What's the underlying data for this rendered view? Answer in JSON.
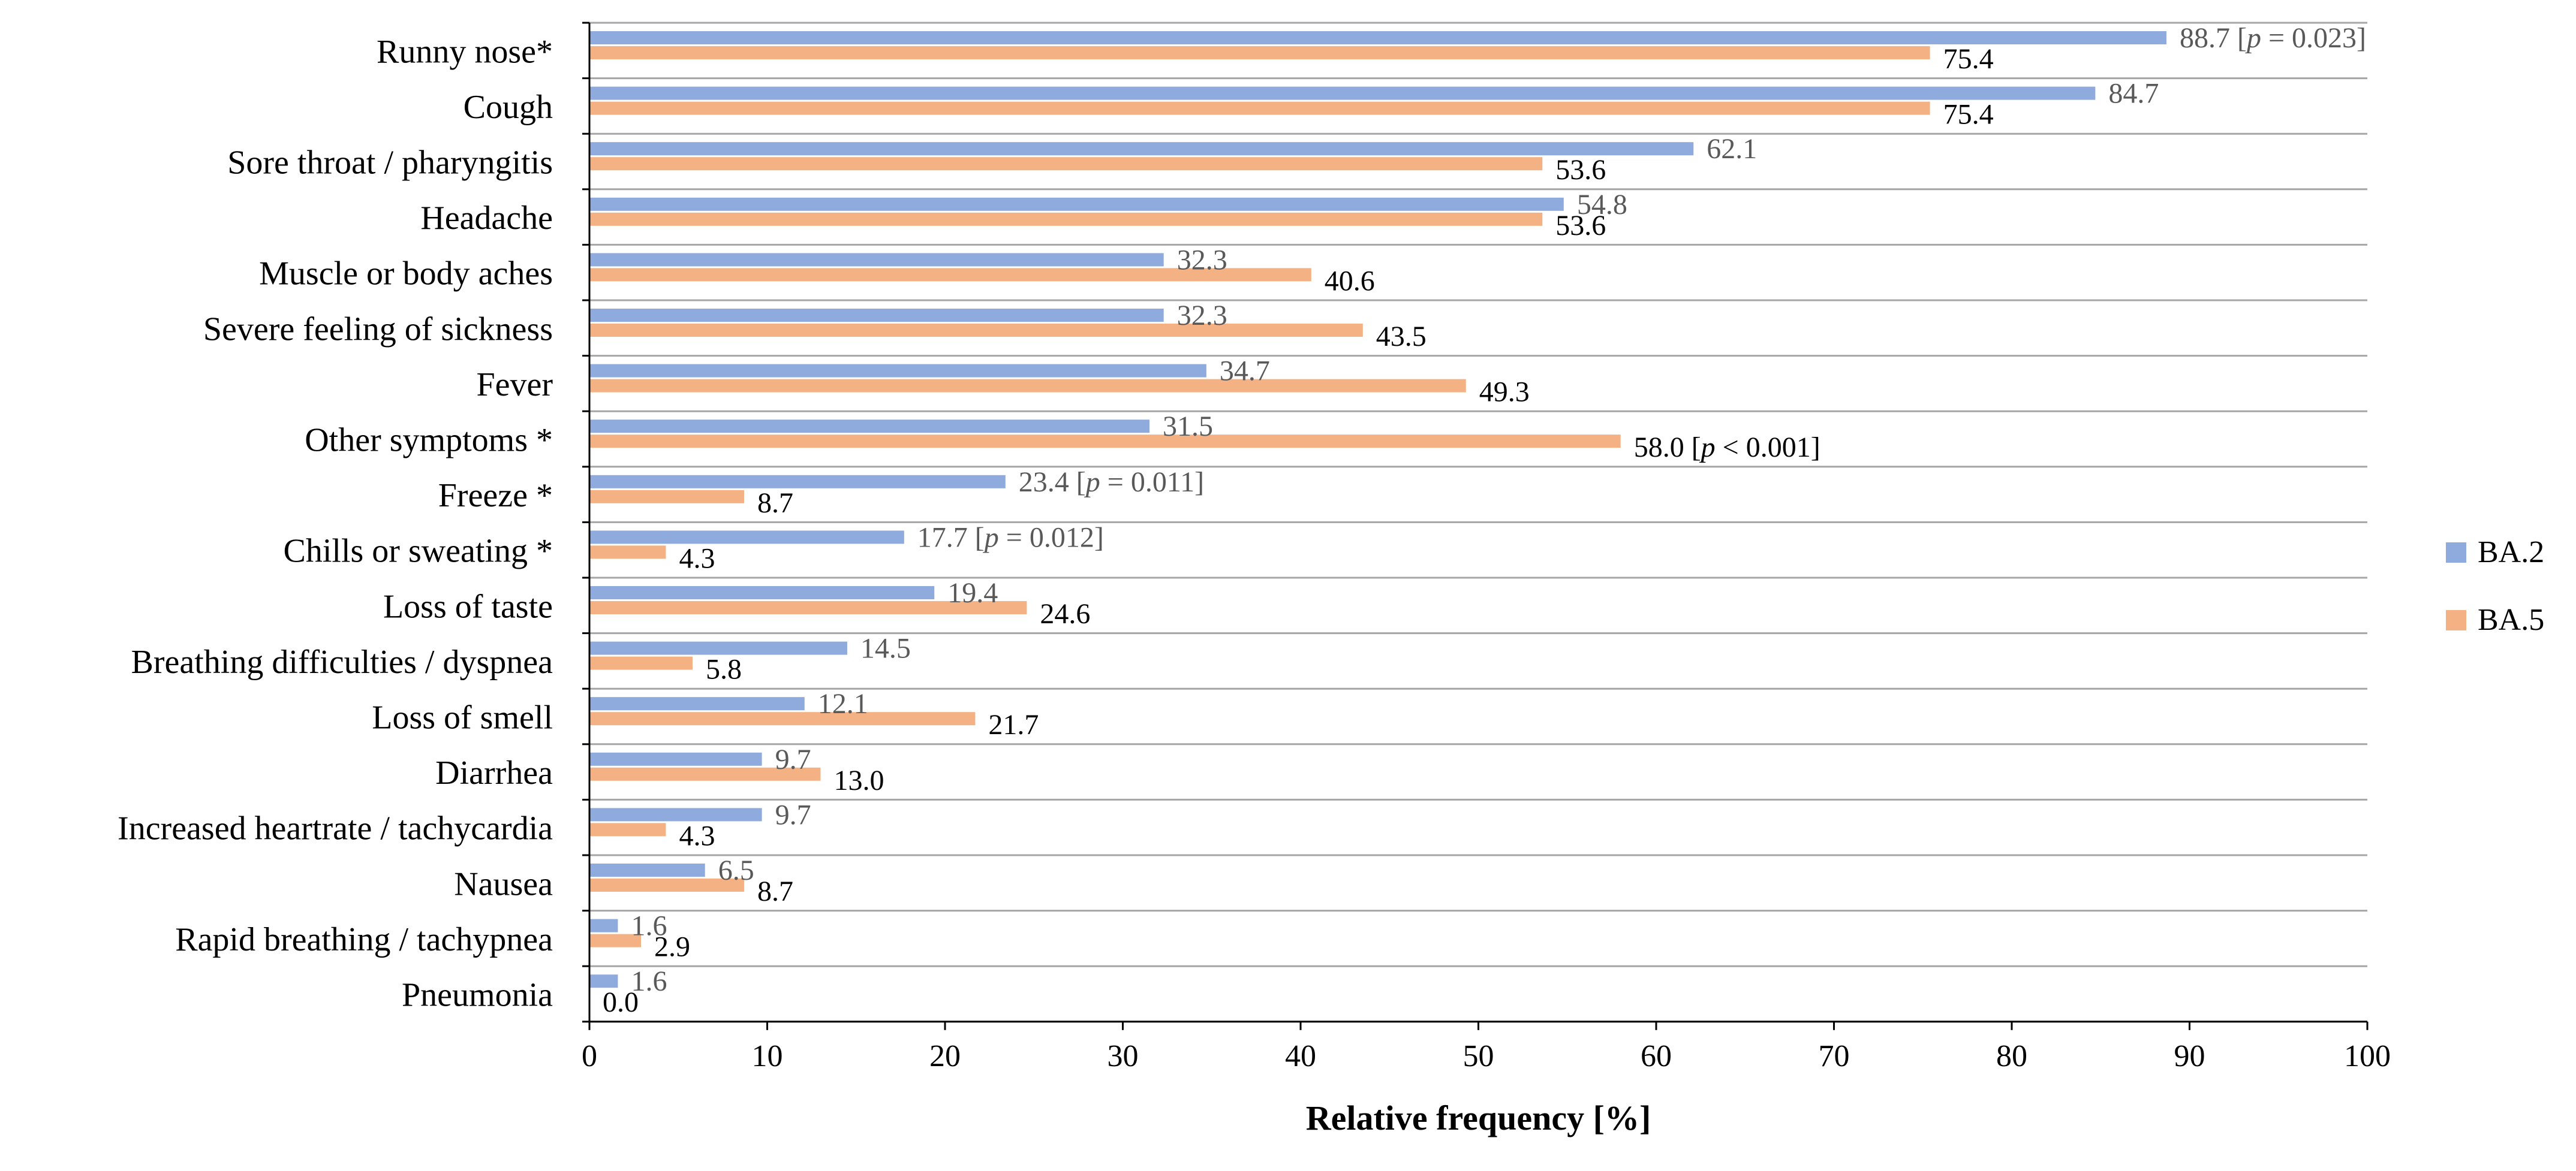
{
  "chart_data": {
    "type": "bar",
    "orientation": "horizontal",
    "xlabel": "Relative frequency [%]",
    "ylabel": "",
    "xlim": [
      0,
      100
    ],
    "xticks": [
      "0",
      "10",
      "20",
      "30",
      "40",
      "50",
      "60",
      "70",
      "80",
      "90",
      "100"
    ],
    "grid": true,
    "legend_position": "right",
    "categories": [
      "Runny nose*",
      "Cough",
      "Sore throat / pharyngitis",
      "Headache",
      "Muscle or body aches",
      "Severe feeling of sickness",
      "Fever",
      "Other symptoms *",
      "Freeze *",
      "Chills or sweating *",
      "Loss of taste",
      "Breathing difficulties / dyspnea",
      "Loss of smell",
      "Diarrhea",
      "Increased heartrate / tachycardia",
      "Nausea",
      "Rapid breathing / tachypnea",
      "Pneumonia"
    ],
    "series": [
      {
        "name": "BA.2",
        "color": "#8faadc",
        "values": [
          88.7,
          84.7,
          62.1,
          54.8,
          32.3,
          32.3,
          34.7,
          31.5,
          23.4,
          17.7,
          19.4,
          14.5,
          12.1,
          9.7,
          9.7,
          6.5,
          1.6,
          1.6
        ],
        "labels": [
          "88.7",
          "84.7",
          "62.1",
          "54.8",
          "32.3",
          "32.3",
          "34.7",
          "31.5",
          "23.4",
          "17.7",
          "19.4",
          "14.5",
          "12.1",
          "9.7",
          "9.7",
          "6.5",
          "1.6",
          "1.6"
        ]
      },
      {
        "name": "BA.5",
        "color": "#f4b183",
        "values": [
          75.4,
          75.4,
          53.6,
          53.6,
          40.6,
          43.5,
          49.3,
          58.0,
          8.7,
          4.3,
          24.6,
          5.8,
          21.7,
          13.0,
          4.3,
          8.7,
          2.9,
          0.0
        ],
        "labels": [
          "75.4",
          "75.4",
          "53.6",
          "53.6",
          "40.6",
          "43.5",
          "49.3",
          "58.0",
          "8.7",
          "4.3",
          "24.6",
          "5.8",
          "21.7",
          "13.0",
          "4.3",
          "8.7",
          "2.9",
          "0.0"
        ]
      }
    ],
    "annotations": [
      {
        "category_index": 0,
        "series": 0,
        "pre": "[",
        "p": "p",
        "post": " = 0.023]"
      },
      {
        "category_index": 7,
        "series": 1,
        "pre": "[",
        "p": "p",
        "post": " < 0.001]"
      },
      {
        "category_index": 8,
        "series": 0,
        "pre": " [",
        "p": "p",
        "post": " = 0.011]"
      },
      {
        "category_index": 9,
        "series": 0,
        "pre": " [",
        "p": "p",
        "post": " = 0.012]"
      }
    ]
  }
}
